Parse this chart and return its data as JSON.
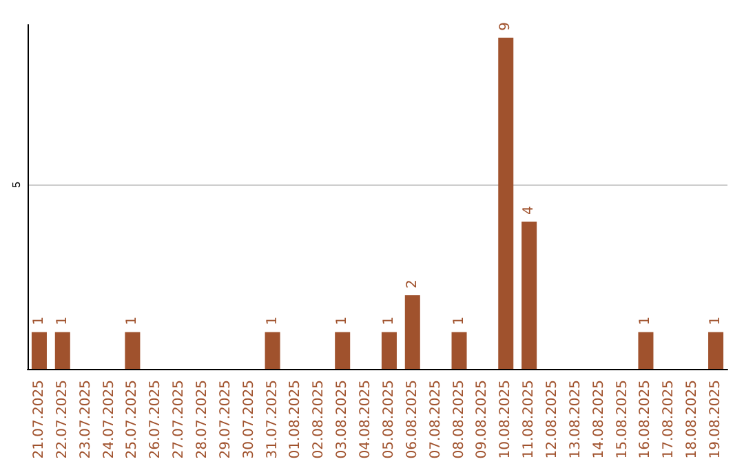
{
  "chart_data": {
    "type": "bar",
    "categories": [
      "21.07.2025",
      "22.07.2025",
      "23.07.2025",
      "24.07.2025",
      "25.07.2025",
      "26.07.2025",
      "27.07.2025",
      "28.07.2025",
      "29.07.2025",
      "30.07.2025",
      "31.07.2025",
      "01.08.2025",
      "02.08.2025",
      "03.08.2025",
      "04.08.2025",
      "05.08.2025",
      "06.08.2025",
      "07.08.2025",
      "08.08.2025",
      "09.08.2025",
      "10.08.2025",
      "11.08.2025",
      "12.08.2025",
      "13.08.2025",
      "14.08.2025",
      "15.08.2025",
      "16.08.2025",
      "17.08.2025",
      "18.08.2025",
      "19.08.2025"
    ],
    "values": [
      1,
      1,
      0,
      0,
      1,
      0,
      0,
      0,
      0,
      0,
      1,
      0,
      0,
      1,
      0,
      1,
      2,
      0,
      1,
      0,
      9,
      4,
      0,
      0,
      0,
      0,
      1,
      0,
      0,
      1
    ],
    "value_labels": [
      "1",
      "1",
      null,
      null,
      "1",
      null,
      null,
      null,
      null,
      null,
      "1",
      null,
      null,
      "1",
      null,
      "1",
      "2",
      null,
      "1",
      null,
      "9",
      "4",
      null,
      null,
      null,
      null,
      "1",
      null,
      null,
      "1"
    ],
    "color": "#a0522d",
    "ylim": [
      0,
      9.35
    ],
    "yticks": [
      {
        "value": 0,
        "label": null
      },
      5
    ],
    "grid": "y"
  }
}
